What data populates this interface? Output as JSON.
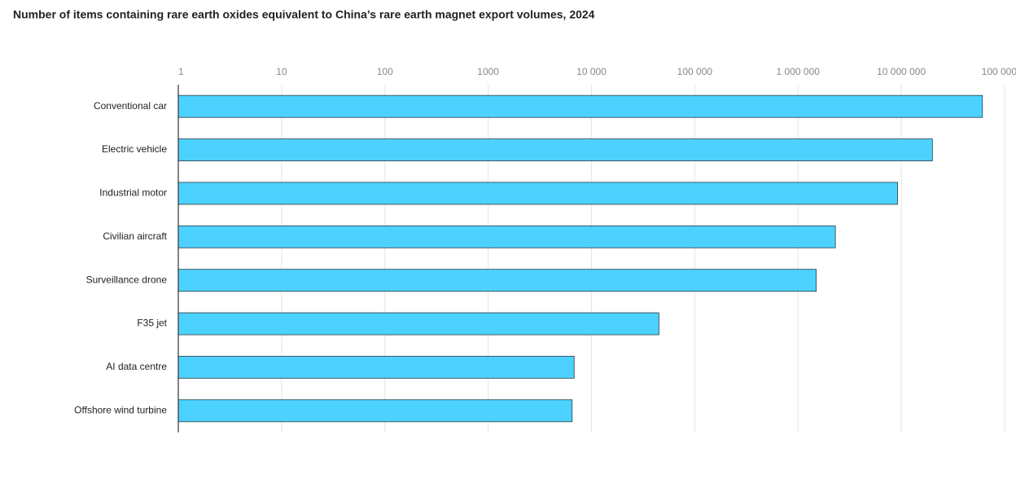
{
  "chart_data": {
    "type": "barh",
    "title": "Number of items containing rare earth oxides equivalent to China’s rare earth magnet export volumes, 2024",
    "categories": [
      "Conventional car",
      "Electric vehicle",
      "Industrial motor",
      "Civilian aircraft",
      "Surveillance drone",
      "F35 jet",
      "AI data centre",
      "Offshore wind turbine"
    ],
    "values": [
      61000000,
      20000000,
      9200000,
      2300000,
      1500000,
      45000,
      6800,
      6500
    ],
    "color": "#4dd2ff",
    "xlim": [
      1,
      100000000
    ],
    "log_x": true,
    "grid": true,
    "xticks": [
      1,
      10,
      100,
      1000,
      {
        "value": 10000,
        "label": "10 000"
      },
      {
        "value": 100000,
        "label": "100 000"
      },
      {
        "value": 1000000,
        "label": "1 000 000"
      },
      {
        "value": 10000000,
        "label": "10 000 000"
      },
      {
        "value": 100000000,
        "label": "100 000 ..."
      }
    ]
  }
}
